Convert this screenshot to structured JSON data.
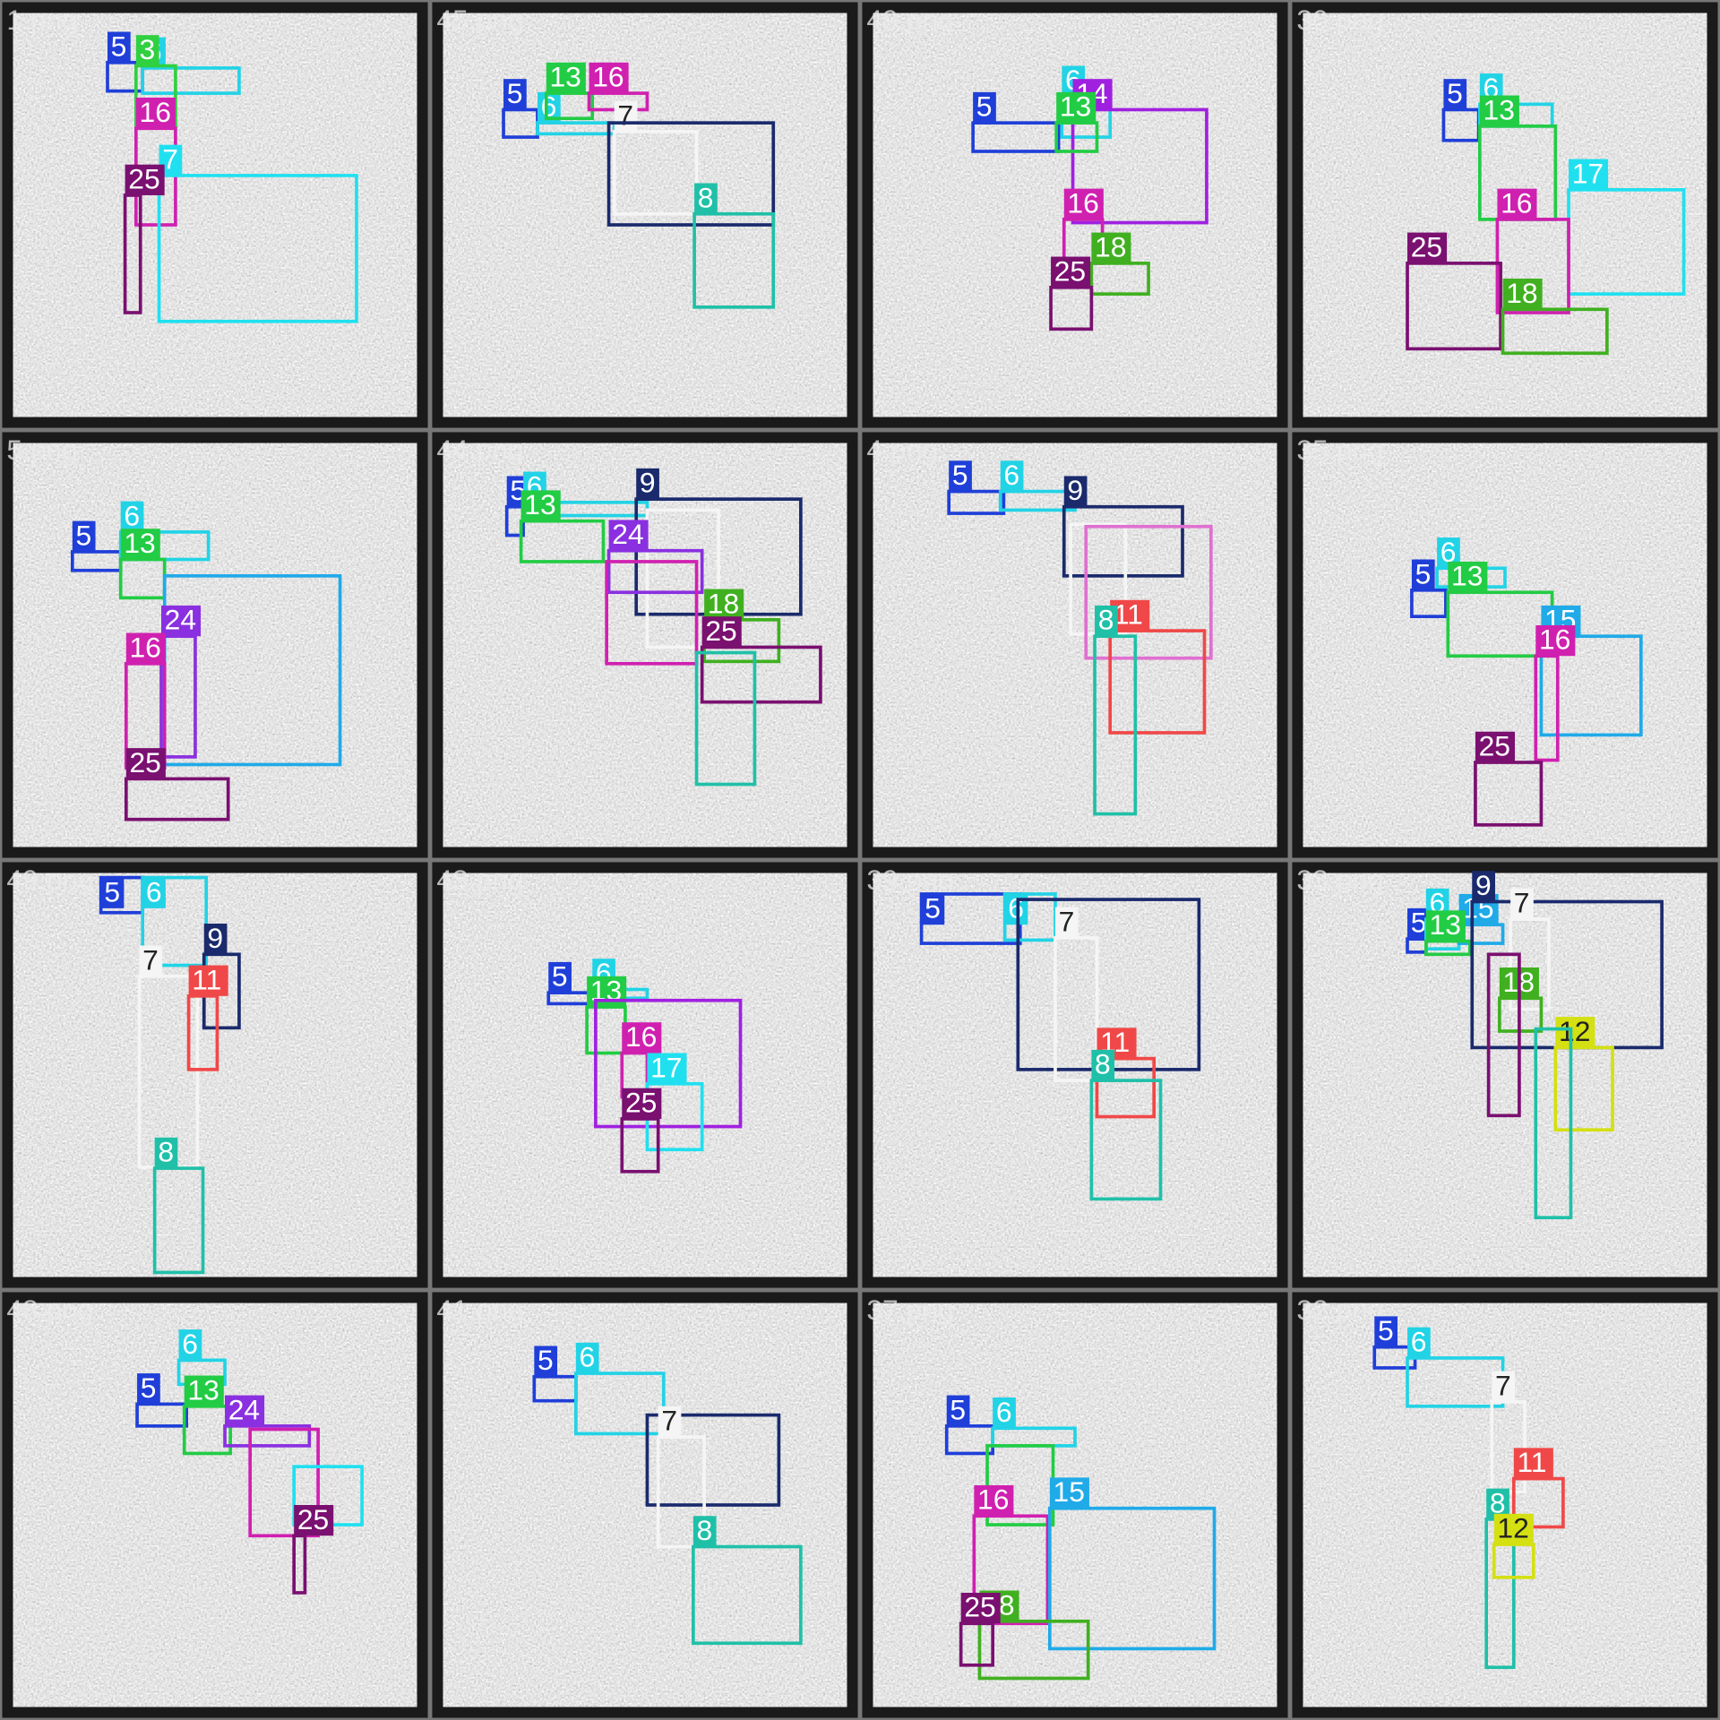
{
  "tiles": [
    {
      "file": "1.png",
      "boxes": [
        {
          "label": "5",
          "color": "#1f3fd8"
        },
        {
          "label": "6",
          "color": "#22d3e6"
        },
        {
          "label": "3",
          "color": "#30d040"
        },
        {
          "label": "16",
          "color": "#d020b0"
        },
        {
          "label": "7",
          "color": "#20e0f0"
        },
        {
          "label": "25",
          "color": "#7a1070"
        }
      ]
    },
    {
      "file": "45.png",
      "boxes": [
        {
          "label": "5",
          "color": "#1f3fd8"
        },
        {
          "label": "6",
          "color": "#22d3e6"
        },
        {
          "label": "13",
          "color": "#22cc44"
        },
        {
          "label": "16",
          "color": "#d020b0"
        },
        {
          "label": "7",
          "color": "#f5f5f5"
        },
        {
          "color": "#1a2a6c"
        },
        {
          "label": "8",
          "color": "#20c0a8"
        }
      ]
    },
    {
      "file": "49.png",
      "boxes": [
        {
          "label": "5",
          "color": "#1f3fd8"
        },
        {
          "label": "6",
          "color": "#22d3e6"
        },
        {
          "label": "14",
          "color": "#a020e0"
        },
        {
          "label": "13",
          "color": "#22cc44"
        },
        {
          "label": "16",
          "color": "#d020b0"
        },
        {
          "label": "18",
          "color": "#40b020"
        },
        {
          "label": "25",
          "color": "#7a1070"
        }
      ]
    },
    {
      "file": "30.png",
      "boxes": [
        {
          "label": "5",
          "color": "#1f3fd8"
        },
        {
          "label": "6",
          "color": "#22d3e6"
        },
        {
          "label": "13",
          "color": "#22cc44"
        },
        {
          "label": "17",
          "color": "#20e0f0"
        },
        {
          "label": "16",
          "color": "#d020b0"
        },
        {
          "label": "25",
          "color": "#7a1070"
        },
        {
          "label": "18",
          "color": "#40b020"
        }
      ]
    },
    {
      "file": "5.png",
      "boxes": [
        {
          "label": "5",
          "color": "#1f3fd8"
        },
        {
          "label": "6",
          "color": "#22d3e6"
        },
        {
          "label": "13",
          "color": "#22cc44"
        },
        {
          "color": "#20aae8"
        },
        {
          "label": "24",
          "color": "#8a30e0"
        },
        {
          "label": "16",
          "color": "#d020b0"
        },
        {
          "label": "25",
          "color": "#7a1070"
        }
      ]
    },
    {
      "file": "44.png",
      "boxes": [
        {
          "label": "5",
          "color": "#1f3fd8"
        },
        {
          "label": "6",
          "color": "#22d3e6"
        },
        {
          "label": "13",
          "color": "#22cc44"
        },
        {
          "label": "9",
          "color": "#1a2a6c"
        },
        {
          "color": "#f5f5f5"
        },
        {
          "label": "24",
          "color": "#8a30e0"
        },
        {
          "color": "#d020b0"
        },
        {
          "label": "18",
          "color": "#40b020"
        },
        {
          "label": "25",
          "color": "#7a1070"
        },
        {
          "color": "#20c0a8"
        }
      ]
    },
    {
      "file": "4.png",
      "boxes": [
        {
          "label": "5",
          "color": "#1f3fd8"
        },
        {
          "label": "6",
          "color": "#22d3e6"
        },
        {
          "label": "9",
          "color": "#1a2a6c"
        },
        {
          "color": "#f5f5f5"
        },
        {
          "color": "#e070d0"
        },
        {
          "label": "11",
          "color": "#f04848"
        },
        {
          "label": "8",
          "color": "#20c0a8"
        }
      ]
    },
    {
      "file": "35.png",
      "boxes": [
        {
          "label": "5",
          "color": "#1f3fd8"
        },
        {
          "label": "6",
          "color": "#22d3e6"
        },
        {
          "label": "13",
          "color": "#22cc44"
        },
        {
          "label": "15",
          "color": "#20aae8"
        },
        {
          "label": "16",
          "color": "#d020b0"
        },
        {
          "label": "25",
          "color": "#7a1070"
        }
      ]
    },
    {
      "file": "49.png",
      "boxes": [
        {
          "label": "5",
          "color": "#1f3fd8"
        },
        {
          "label": "6",
          "color": "#22d3e6"
        },
        {
          "label": "9",
          "color": "#1a2a6c"
        },
        {
          "label": "7",
          "color": "#f5f5f5"
        },
        {
          "label": "11",
          "color": "#f04848"
        },
        {
          "label": "8",
          "color": "#20c0a8"
        }
      ]
    },
    {
      "file": "43.png",
      "boxes": [
        {
          "label": "5",
          "color": "#1f3fd8"
        },
        {
          "label": "6",
          "color": "#22d3e6"
        },
        {
          "label": "13",
          "color": "#22cc44"
        },
        {
          "color": "#a020e0"
        },
        {
          "label": "16",
          "color": "#d020b0"
        },
        {
          "label": "17",
          "color": "#20e0f0"
        },
        {
          "label": "25",
          "color": "#7a1070"
        }
      ]
    },
    {
      "file": "39.png",
      "boxes": [
        {
          "label": "5",
          "color": "#1f3fd8"
        },
        {
          "label": "6",
          "color": "#22d3e6"
        },
        {
          "color": "#1a2a6c"
        },
        {
          "label": "7",
          "color": "#f5f5f5"
        },
        {
          "label": "11",
          "color": "#f04848"
        },
        {
          "label": "8",
          "color": "#20c0a8"
        }
      ]
    },
    {
      "file": "33.png",
      "boxes": [
        {
          "label": "5",
          "color": "#1f3fd8"
        },
        {
          "label": "6",
          "color": "#22d3e6"
        },
        {
          "label": "15",
          "color": "#20aae8"
        },
        {
          "label": "13",
          "color": "#22cc44"
        },
        {
          "label": "9",
          "color": "#1a2a6c"
        },
        {
          "label": "7",
          "color": "#f5f5f5"
        },
        {
          "label": "18",
          "color": "#40b020"
        },
        {
          "label": "12",
          "color": "#d4e012"
        },
        {
          "color": "#20c0a8"
        },
        {
          "color": "#7a1070"
        }
      ]
    },
    {
      "file": "48.png",
      "boxes": [
        {
          "label": "6",
          "color": "#22d3e6"
        },
        {
          "label": "5",
          "color": "#1f3fd8"
        },
        {
          "label": "13",
          "color": "#22cc44"
        },
        {
          "label": "24",
          "color": "#8a30e0"
        },
        {
          "color": "#d020b0"
        },
        {
          "color": "#20e0f0"
        },
        {
          "label": "25",
          "color": "#7a1070"
        }
      ]
    },
    {
      "file": "41.png",
      "boxes": [
        {
          "label": "5",
          "color": "#1f3fd8"
        },
        {
          "label": "6",
          "color": "#22d3e6"
        },
        {
          "color": "#1a2a6c"
        },
        {
          "label": "7",
          "color": "#f5f5f5"
        },
        {
          "label": "8",
          "color": "#20c0a8"
        }
      ]
    },
    {
      "file": "37.png",
      "boxes": [
        {
          "label": "5",
          "color": "#1f3fd8"
        },
        {
          "label": "6",
          "color": "#22d3e6"
        },
        {
          "color": "#22cc44"
        },
        {
          "label": "16",
          "color": "#d020b0"
        },
        {
          "label": "15",
          "color": "#20aae8"
        },
        {
          "label": "18",
          "color": "#40b020"
        },
        {
          "label": "25",
          "color": "#7a1070"
        }
      ]
    },
    {
      "file": "32.png",
      "boxes": [
        {
          "label": "5",
          "color": "#1f3fd8"
        },
        {
          "label": "6",
          "color": "#22d3e6"
        },
        {
          "label": "7",
          "color": "#f5f5f5"
        },
        {
          "label": "11",
          "color": "#f04848"
        },
        {
          "label": "8",
          "color": "#20c0a8"
        },
        {
          "label": "12",
          "color": "#d4e012"
        }
      ]
    }
  ]
}
